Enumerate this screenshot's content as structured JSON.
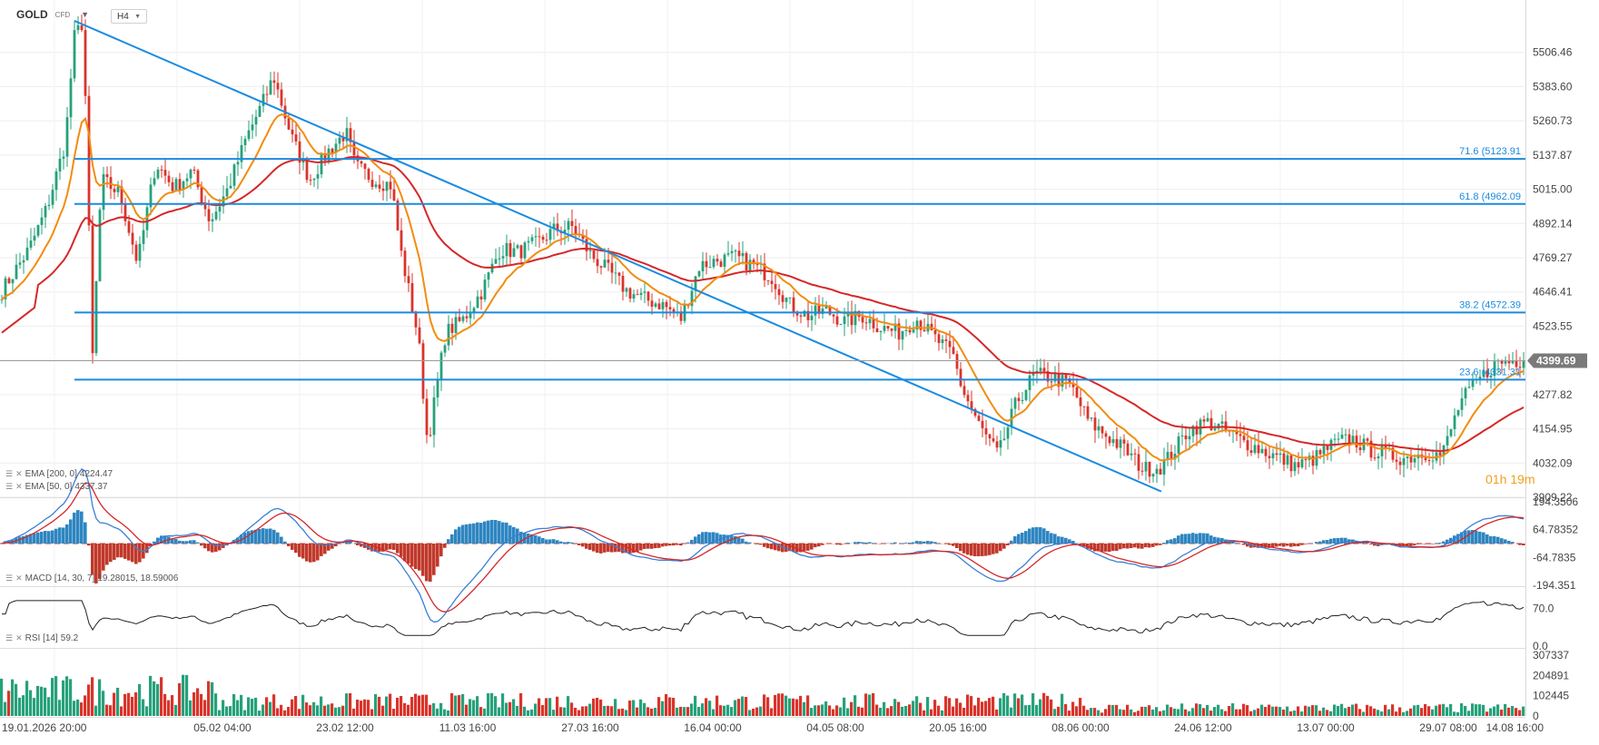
{
  "header": {
    "symbol": "GOLD",
    "symbol_type": "CFD",
    "timeframe": "H4"
  },
  "countdown": {
    "hours": "01",
    "hour_unit": "h",
    "minutes": "19",
    "minute_unit": "m"
  },
  "colors": {
    "ema200": "#d62728",
    "ema50": "#f28c0f",
    "trendline": "#1a8be0",
    "fib": "#1a8be0",
    "up": "#26a17b",
    "down": "#d9342b",
    "macd_line": "#3a7fd4",
    "macd_signal": "#d62728",
    "macd_hist_pos": "#2e86c1",
    "macd_hist_neg": "#c0392b",
    "rsi": "#222222",
    "current_price_bg": "#7a7a7a"
  },
  "chart_data": [
    {
      "type": "candlestick",
      "panel": "price",
      "title": "",
      "x_tick_labels": [
        "19.01.2026 20:00",
        "05.02 04:00",
        "23.02 12:00",
        "11.03 16:00",
        "27.03 16:00",
        "16.04 00:00",
        "04.05 08:00",
        "20.05 16:00",
        "08.06 00:00",
        "24.06 12:00",
        "13.07 00:00",
        "29.07 08:00",
        "14.08 16:00"
      ],
      "y_ticks": [
        "5506.46",
        "5383.60",
        "5260.73",
        "5137.87",
        "5015.00",
        "4892.14",
        "4769.27",
        "4646.41",
        "4523.55",
        "4277.82",
        "4154.95",
        "4032.09",
        "3909.22"
      ],
      "ylim": [
        3909.22,
        5629.32
      ],
      "current_price": "4399.69",
      "price_path": [
        [
          0,
          4650
        ],
        [
          3,
          4800
        ],
        [
          5,
          4950
        ],
        [
          7,
          5180
        ],
        [
          8,
          5560
        ],
        [
          9,
          5620
        ],
        [
          10,
          4400
        ],
        [
          11,
          5050
        ],
        [
          13,
          5000
        ],
        [
          15,
          4750
        ],
        [
          17,
          5110
        ],
        [
          19,
          5020
        ],
        [
          21,
          5080
        ],
        [
          23,
          4900
        ],
        [
          25,
          5020
        ],
        [
          27,
          5200
        ],
        [
          29,
          5340
        ],
        [
          30,
          5420
        ],
        [
          32,
          5200
        ],
        [
          34,
          5050
        ],
        [
          36,
          5150
        ],
        [
          38,
          5220
        ],
        [
          39,
          5100
        ],
        [
          41,
          5050
        ],
        [
          43,
          5030
        ],
        [
          44,
          4800
        ],
        [
          46,
          4480
        ],
        [
          47,
          4100
        ],
        [
          49,
          4500
        ],
        [
          51,
          4550
        ],
        [
          53,
          4650
        ],
        [
          55,
          4800
        ],
        [
          57,
          4790
        ],
        [
          59,
          4820
        ],
        [
          61,
          4870
        ],
        [
          63,
          4880
        ],
        [
          65,
          4780
        ],
        [
          67,
          4720
        ],
        [
          69,
          4650
        ],
        [
          71,
          4620
        ],
        [
          73,
          4600
        ],
        [
          75,
          4550
        ],
        [
          77,
          4740
        ],
        [
          79,
          4760
        ],
        [
          81,
          4770
        ],
        [
          83,
          4740
        ],
        [
          85,
          4700
        ],
        [
          87,
          4600
        ],
        [
          89,
          4560
        ],
        [
          91,
          4580
        ],
        [
          93,
          4540
        ],
        [
          95,
          4560
        ],
        [
          97,
          4520
        ],
        [
          99,
          4500
        ],
        [
          101,
          4550
        ],
        [
          103,
          4480
        ],
        [
          105,
          4420
        ],
        [
          106,
          4300
        ],
        [
          108,
          4160
        ],
        [
          110,
          4060
        ],
        [
          112,
          4250
        ],
        [
          114,
          4350
        ],
        [
          116,
          4340
        ],
        [
          118,
          4310
        ],
        [
          120,
          4180
        ],
        [
          122,
          4130
        ],
        [
          124,
          4080
        ],
        [
          126,
          4010
        ],
        [
          128,
          4020
        ],
        [
          129,
          4060
        ],
        [
          131,
          4150
        ],
        [
          133,
          4180
        ],
        [
          135,
          4150
        ],
        [
          137,
          4110
        ],
        [
          139,
          4080
        ],
        [
          141,
          4050
        ],
        [
          143,
          4020
        ],
        [
          145,
          4050
        ],
        [
          147,
          4100
        ],
        [
          149,
          4120
        ],
        [
          151,
          4080
        ],
        [
          153,
          4060
        ],
        [
          155,
          4050
        ],
        [
          157,
          4070
        ],
        [
          159,
          4060
        ],
        [
          161,
          4250
        ],
        [
          163,
          4330
        ],
        [
          165,
          4390
        ],
        [
          167,
          4400
        ],
        [
          168,
          4399.69
        ]
      ],
      "overlays": [
        {
          "name": "EMA [200, 0]",
          "value": "4224.47"
        },
        {
          "name": "EMA [50, 0]",
          "value": "4337.37"
        }
      ],
      "fib_levels": [
        {
          "label": "71.6 (5123.91",
          "price": 5123.91
        },
        {
          "label": "61.8 (4962.09",
          "price": 4962.09
        },
        {
          "label": "38.2 (4572.39",
          "price": 4572.39
        },
        {
          "label": "23.6 (4331.31",
          "price": 4331.31
        }
      ],
      "trendline": [
        [
          8,
          5620
        ],
        [
          128,
          3930
        ]
      ]
    },
    {
      "type": "line",
      "panel": "macd",
      "indicator": "MACD [14, 30, 7]",
      "values_text": "19.28015, 18.59006",
      "y_ticks": [
        "194.3506",
        "64.78352",
        "-64.7835",
        "-194.351"
      ],
      "ylim": [
        -194.351,
        194.3506
      ]
    },
    {
      "type": "line",
      "panel": "rsi",
      "indicator": "RSI [14]",
      "value_text": "59.2",
      "y_ticks": [
        "70.0",
        "0.0"
      ],
      "ylim": [
        0,
        100
      ]
    },
    {
      "type": "bar",
      "panel": "volume",
      "y_ticks": [
        "307337",
        "204891",
        "102445",
        "0"
      ],
      "ylim": [
        0,
        307337
      ]
    }
  ]
}
